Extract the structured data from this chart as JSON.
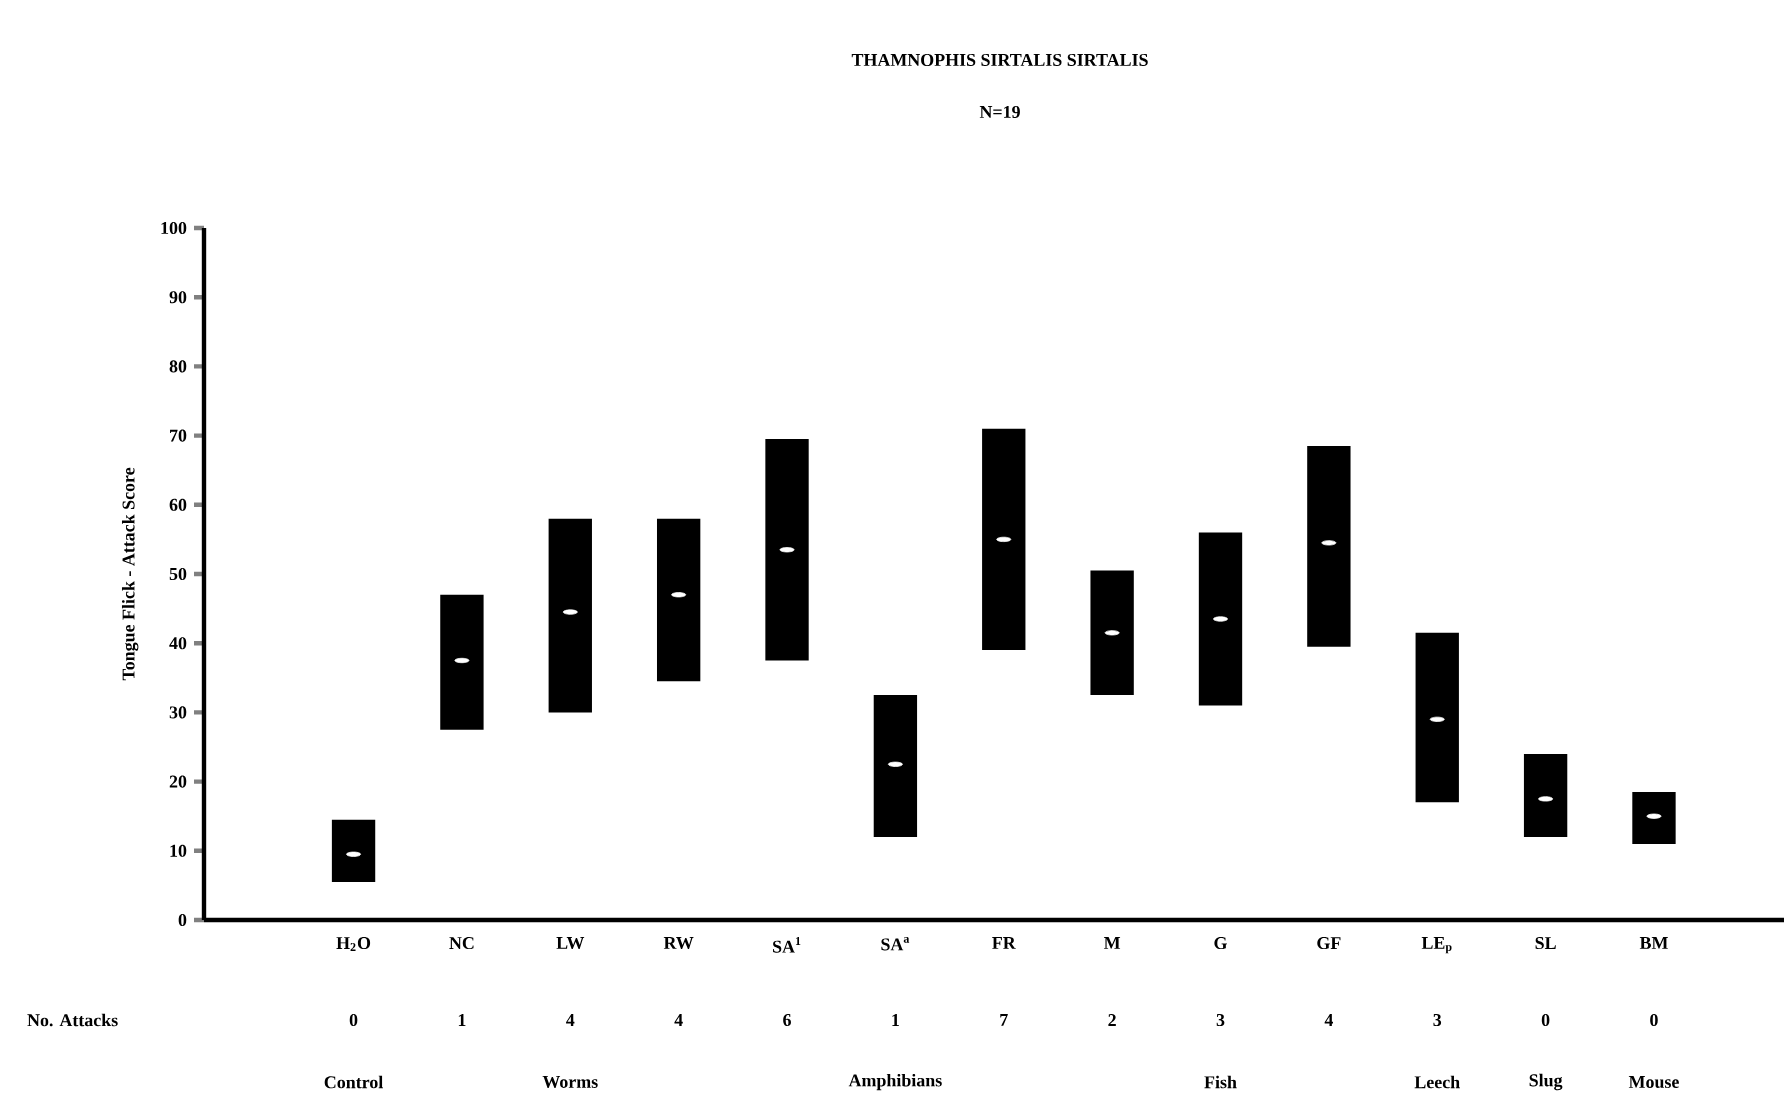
{
  "chart_data": {
    "type": "bar",
    "title": "THAMNOPHIS SIRTALIS SIRTALIS",
    "subtitle": "N=19",
    "ylabel": "Tongue Flick - Attack Score",
    "categories": [
      "H$_{2}$O",
      "NC",
      "LW",
      "RW",
      "SA$^{1}$",
      "SA$^{a}$",
      "FR",
      "M",
      "G",
      "GF",
      "LE$_{p}$",
      "SL",
      "BM"
    ],
    "series": [
      {
        "type": "bar",
        "color": "#000000",
        "base": [
          5.5,
          27.5,
          30,
          34.5,
          37.5,
          12,
          39,
          32.5,
          31,
          39.5,
          17,
          12,
          11
        ],
        "values": [
          9,
          19.5,
          28,
          23.5,
          32,
          20.5,
          32,
          18,
          25,
          29,
          24.5,
          12,
          7.5
        ]
      },
      {
        "type": "scatter",
        "color": "#ffffff",
        "x": [
          "H$_{2}$O",
          "NC",
          "LW",
          "RW",
          "SA$^{1}$",
          "SA$^{a}$",
          "FR",
          "M",
          "G",
          "GF",
          "LE$_{p}$",
          "SL",
          "BM"
        ],
        "values": [
          9.5,
          37.5,
          44.5,
          47,
          53.5,
          22.5,
          55,
          41.5,
          43.5,
          54.5,
          29,
          17.5,
          15
        ]
      }
    ],
    "ylim": [
      0,
      100
    ],
    "yticks": [
      0,
      10,
      20,
      30,
      40,
      50,
      60,
      70,
      80,
      90,
      100
    ],
    "grid": false,
    "annotations": [
      "No. Attacks",
      "0",
      "1",
      "4",
      "4",
      "6",
      "1",
      "7",
      "2",
      "3",
      "4",
      "3",
      "0",
      "0",
      "Control",
      "Worms",
      "Amphibians",
      "Fish",
      "Leech",
      "Slug",
      "Mouse"
    ]
  }
}
